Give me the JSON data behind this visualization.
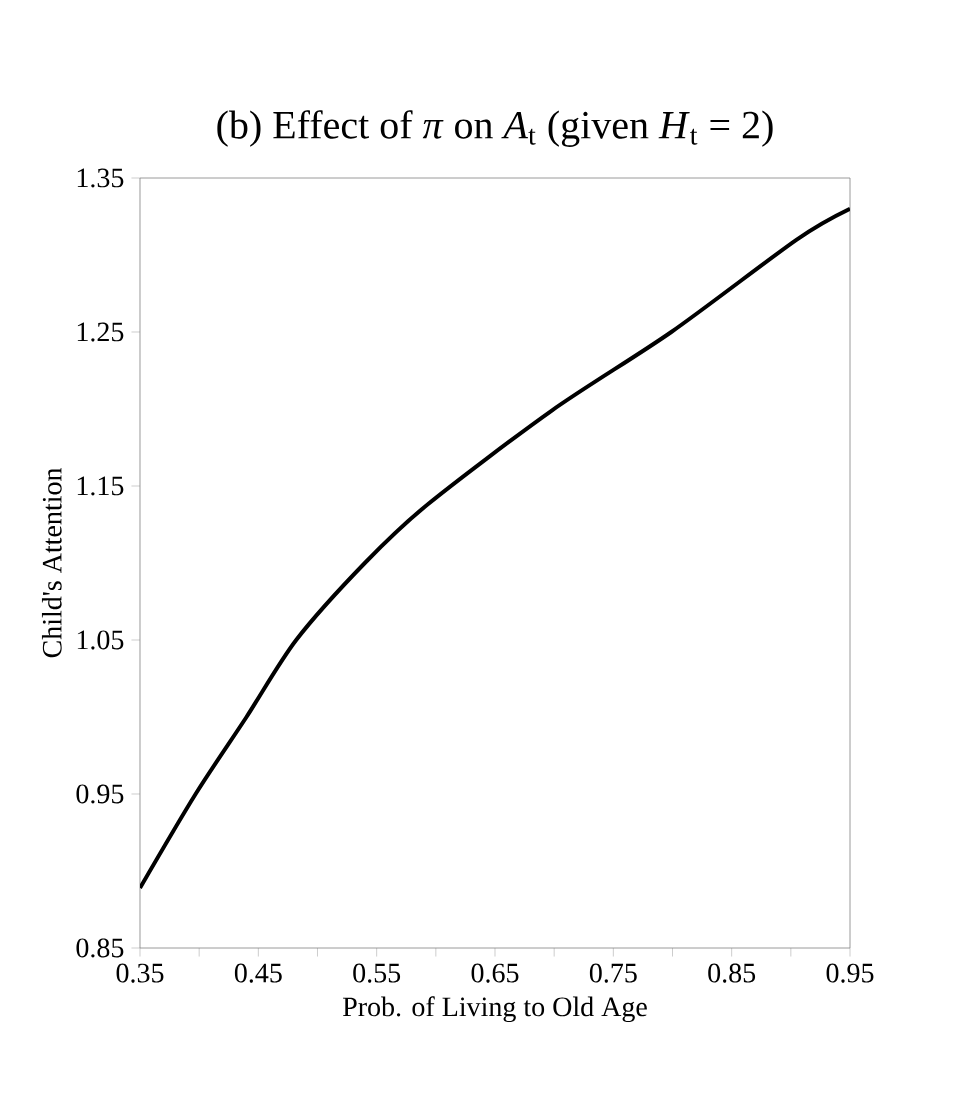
{
  "chart_data": {
    "type": "line",
    "title": "(b) Effect of *π* on *A*$_{t}$ (given *H*$_{t}$ = 2)",
    "xlabel": "Prob. of Living to Old Age",
    "ylabel": "Child's Attention",
    "x": [
      0.35,
      0.397,
      0.44,
      0.482,
      0.54,
      0.593,
      0.698,
      0.799,
      0.905,
      0.95
    ],
    "series": [
      {
        "color": "#000000",
        "values": [
          0.889,
          0.95,
          1.0,
          1.05,
          1.1,
          1.138,
          1.199,
          1.25,
          1.31,
          1.33
        ]
      }
    ],
    "xlim": [
      0.35,
      0.95
    ],
    "ylim": [
      0.85,
      1.35
    ],
    "xticks": [
      0.35,
      {
        "value": 0.4,
        "label": null
      },
      0.45,
      {
        "value": 0.5,
        "label": null
      },
      0.55,
      {
        "value": 0.6,
        "label": null
      },
      0.65,
      {
        "value": 0.7,
        "label": null
      },
      0.75,
      {
        "value": 0.8,
        "label": null
      },
      0.85,
      {
        "value": 0.9,
        "label": null
      },
      0.95
    ],
    "yticks": [
      0.85,
      0.95,
      1.05,
      1.15,
      1.25,
      1.35
    ],
    "grid": false,
    "marker": "none",
    "line_style": "solid"
  }
}
